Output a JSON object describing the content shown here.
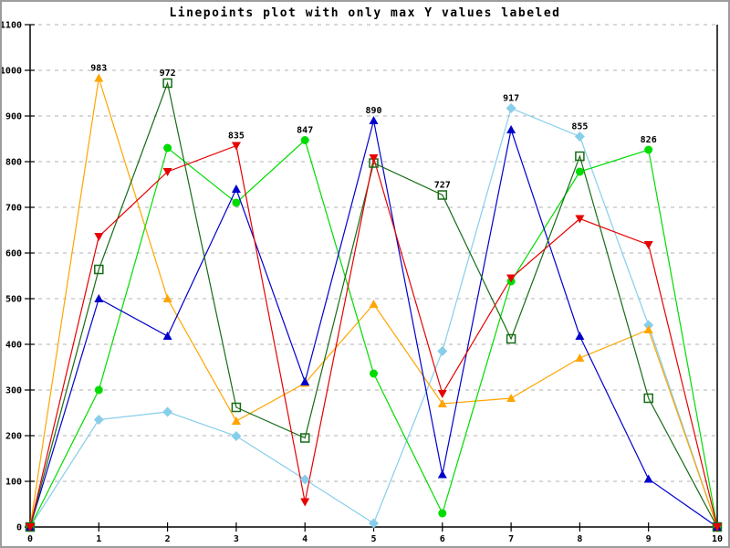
{
  "chart_data": {
    "type": "line",
    "title": "Linepoints plot with only max Y values labeled",
    "xlabel": "",
    "ylabel": "",
    "xlim": [
      0,
      10
    ],
    "ylim": [
      0,
      1100
    ],
    "x_ticks": [
      "0",
      "1",
      "2",
      "3",
      "4",
      "5",
      "6",
      "7",
      "8",
      "9",
      "10"
    ],
    "y_ticks": [
      "0",
      "100",
      "200",
      "300",
      "400",
      "500",
      "600",
      "700",
      "800",
      "900",
      "1000",
      "1100"
    ],
    "grid": "horizontal-dashed",
    "legend": "none",
    "x": [
      0,
      1,
      2,
      3,
      4,
      5,
      6,
      7,
      8,
      9,
      10
    ],
    "series": [
      {
        "name": "sky-blue-diamond",
        "color": "#87CEEB",
        "marker": "diamond",
        "values": [
          0,
          235,
          252,
          199,
          104,
          8,
          385,
          917,
          855,
          442,
          0
        ]
      },
      {
        "name": "orange-triangle",
        "color": "#FFA500",
        "marker": "triangle-up",
        "values": [
          0,
          983,
          500,
          232,
          315,
          488,
          270,
          282,
          370,
          432,
          0
        ]
      },
      {
        "name": "green-circle",
        "color": "#00DC00",
        "marker": "circle",
        "values": [
          0,
          300,
          830,
          710,
          847,
          336,
          30,
          538,
          778,
          826,
          0
        ]
      },
      {
        "name": "blue-triangle",
        "color": "#0000CC",
        "marker": "triangle-up",
        "values": [
          0,
          500,
          418,
          740,
          318,
          890,
          115,
          870,
          418,
          105,
          0
        ]
      },
      {
        "name": "dark-green-square",
        "color": "#166B16",
        "marker": "square-open",
        "values": [
          0,
          564,
          972,
          262,
          195,
          797,
          727,
          412,
          812,
          282,
          0
        ]
      },
      {
        "name": "red-triangle-down",
        "color": "#E60000",
        "marker": "triangle-down",
        "values": [
          0,
          636,
          778,
          835,
          55,
          808,
          292,
          545,
          675,
          618,
          0
        ]
      }
    ],
    "point_labels": [
      {
        "x": 1,
        "value": 983,
        "text": "983"
      },
      {
        "x": 2,
        "value": 972,
        "text": "972"
      },
      {
        "x": 3,
        "value": 835,
        "text": "835"
      },
      {
        "x": 4,
        "value": 847,
        "text": "847"
      },
      {
        "x": 5,
        "value": 890,
        "text": "890"
      },
      {
        "x": 6,
        "value": 727,
        "text": "727"
      },
      {
        "x": 7,
        "value": 917,
        "text": "917"
      },
      {
        "x": 8,
        "value": 855,
        "text": "855"
      },
      {
        "x": 9,
        "value": 826,
        "text": "826"
      }
    ],
    "colors": {
      "axis": "#000000",
      "gridline": "#b0b0b0",
      "label_text": "#000000",
      "frame_border": "#9c9c9c",
      "background": "#ffffff"
    }
  }
}
